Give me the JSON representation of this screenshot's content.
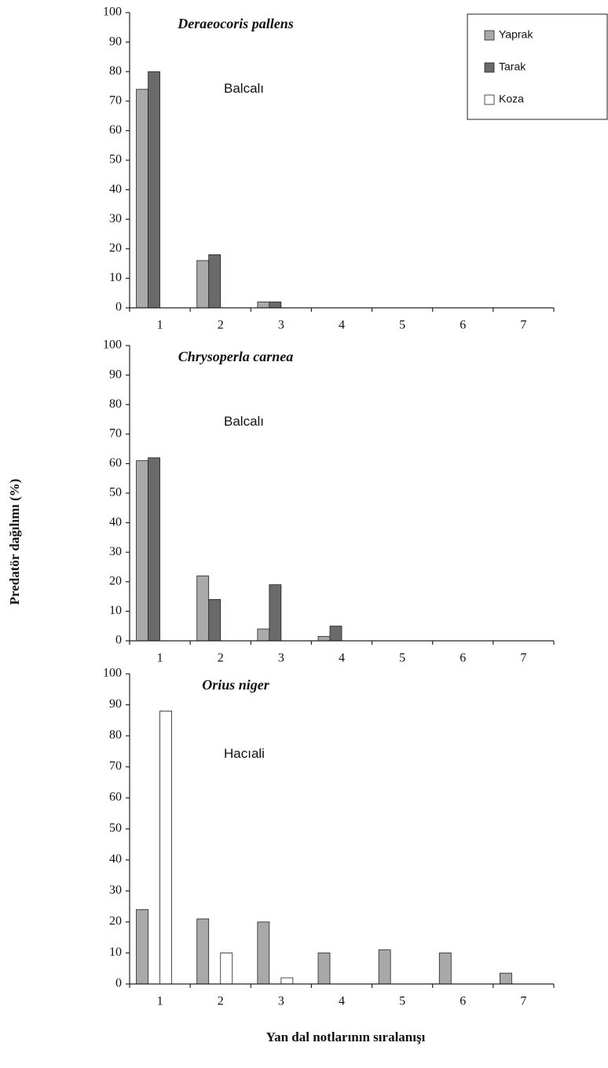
{
  "ylabel": "Predatör dağılımı (%)",
  "xlabel": "Yan dal notlarının sıralanışı",
  "chart_data": [
    {
      "type": "bar",
      "title": "Deraeocoris pallens",
      "annotation": "Balcalı",
      "categories": [
        "1",
        "2",
        "3",
        "4",
        "5",
        "6",
        "7"
      ],
      "series": [
        {
          "name": "Yaprak",
          "color": "#a9a9a9",
          "values": [
            74,
            16,
            2,
            0,
            0,
            0,
            0
          ]
        },
        {
          "name": "Tarak",
          "color": "#6a6a6a",
          "values": [
            80,
            18,
            2,
            0,
            0,
            0,
            0
          ]
        },
        {
          "name": "Koza",
          "color": "#ffffff",
          "values": [
            0,
            0,
            0,
            0,
            0,
            0,
            0
          ]
        }
      ],
      "ylim": [
        0,
        100
      ],
      "yticks": [
        0,
        10,
        20,
        30,
        40,
        50,
        60,
        70,
        80,
        90,
        100
      ],
      "legend": "top-right"
    },
    {
      "type": "bar",
      "title": "Chrysoperla carnea",
      "annotation": "Balcalı",
      "categories": [
        "1",
        "2",
        "3",
        "4",
        "5",
        "6",
        "7"
      ],
      "series": [
        {
          "name": "Yaprak",
          "color": "#a9a9a9",
          "values": [
            61,
            22,
            4,
            1.5,
            0,
            0,
            0
          ]
        },
        {
          "name": "Tarak",
          "color": "#6a6a6a",
          "values": [
            62,
            14,
            19,
            5,
            0,
            0,
            0
          ]
        },
        {
          "name": "Koza",
          "color": "#ffffff",
          "values": [
            0,
            0,
            0,
            0,
            0,
            0,
            0
          ]
        }
      ],
      "ylim": [
        0,
        100
      ],
      "yticks": [
        0,
        10,
        20,
        30,
        40,
        50,
        60,
        70,
        80,
        90,
        100
      ]
    },
    {
      "type": "bar",
      "title": "Orius niger",
      "annotation": "Hacıali",
      "categories": [
        "1",
        "2",
        "3",
        "4",
        "5",
        "6",
        "7"
      ],
      "series": [
        {
          "name": "Yaprak",
          "color": "#a9a9a9",
          "values": [
            24,
            21,
            20,
            10,
            11,
            10,
            3.5
          ]
        },
        {
          "name": "Tarak",
          "color": "#6a6a6a",
          "values": [
            0,
            0,
            0,
            0,
            0,
            0,
            0
          ]
        },
        {
          "name": "Koza",
          "color": "#ffffff",
          "values": [
            88,
            10,
            2,
            0,
            0,
            0,
            0
          ]
        }
      ],
      "ylim": [
        0,
        100
      ],
      "yticks": [
        0,
        10,
        20,
        30,
        40,
        50,
        60,
        70,
        80,
        90,
        100
      ]
    }
  ]
}
